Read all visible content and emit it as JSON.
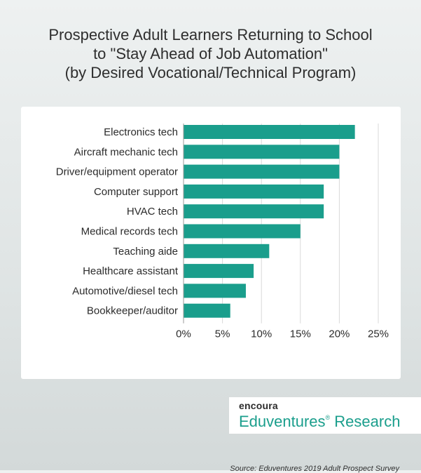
{
  "title_lines": [
    "Prospective Adult Learners Returning to School",
    "to \"Stay Ahead of Job Automation\"",
    "(by Desired Vocational/Technical Program)"
  ],
  "source": "Source: Eduventures 2019 Adult Prospect Survey",
  "logo": {
    "brand": "encoura",
    "name": "Eduventures",
    "mark": "®",
    "suffix": "Research"
  },
  "colors": {
    "bar": "#1a9e8c",
    "grid": "#d9d9d9",
    "axis": "#999999"
  },
  "chart_data": {
    "type": "bar",
    "orientation": "horizontal",
    "categories": [
      "Electronics tech",
      "Aircraft mechanic tech",
      "Driver/equipment operator",
      "Computer support",
      "HVAC tech",
      "Medical records tech",
      "Teaching aide",
      "Healthcare assistant",
      "Automotive/diesel tech",
      "Bookkeeper/auditor"
    ],
    "values": [
      22,
      20,
      20,
      18,
      18,
      15,
      11,
      9,
      8,
      6
    ],
    "unit": "%",
    "xlim": [
      0,
      25
    ],
    "xticks": [
      "0%",
      "5%",
      "10%",
      "15%",
      "20%",
      "25%"
    ],
    "grid": true,
    "legend": "none"
  }
}
